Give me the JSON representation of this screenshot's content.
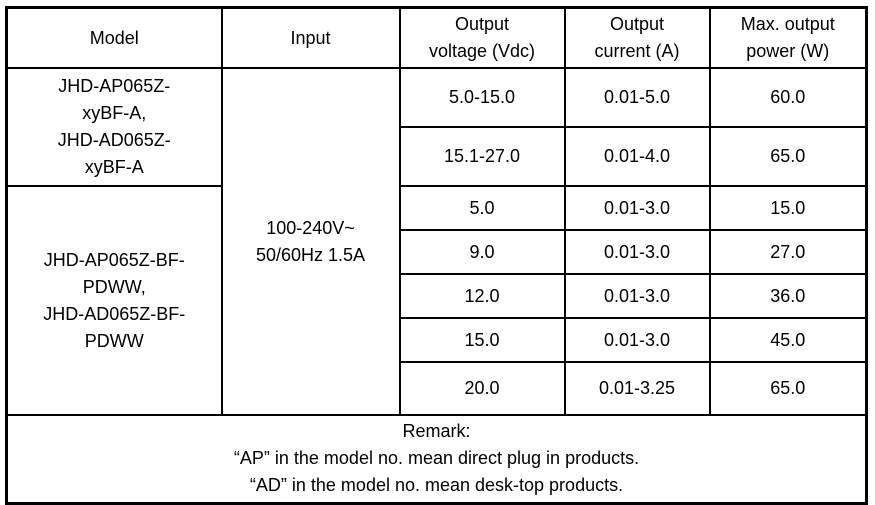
{
  "table": {
    "headers": {
      "model": "Model",
      "input": "Input",
      "voltage_line1": "Output",
      "voltage_line2": "voltage (Vdc)",
      "current_line1": "Output",
      "current_line2": "current (A)",
      "power_line1": "Max. output",
      "power_line2": "power (W)"
    },
    "model_group_a": {
      "lines": [
        "JHD-AP065Z-",
        "xyBF-A,",
        "JHD-AD065Z-",
        "xyBF-A"
      ]
    },
    "model_group_b": {
      "lines": [
        "JHD-AP065Z-BF-",
        "PDWW,",
        "JHD-AD065Z-BF-",
        "PDWW"
      ]
    },
    "input_value": {
      "lines": [
        "100-240V~",
        "50/60Hz 1.5A"
      ]
    },
    "rows": [
      {
        "voltage": "5.0-15.0",
        "current": "0.01-5.0",
        "power": "60.0"
      },
      {
        "voltage": "15.1-27.0",
        "current": "0.01-4.0",
        "power": "65.0"
      },
      {
        "voltage": "5.0",
        "current": "0.01-3.0",
        "power": "15.0"
      },
      {
        "voltage": "9.0",
        "current": "0.01-3.0",
        "power": "27.0"
      },
      {
        "voltage": "12.0",
        "current": "0.01-3.0",
        "power": "36.0"
      },
      {
        "voltage": "15.0",
        "current": "0.01-3.0",
        "power": "45.0"
      },
      {
        "voltage": "20.0",
        "current": "0.01-3.25",
        "power": "65.0"
      }
    ],
    "remark": {
      "lines": [
        "Remark:",
        "“AP” in the model no. mean direct plug in products.",
        "“AD” in the model no. mean desk-top products."
      ]
    }
  }
}
